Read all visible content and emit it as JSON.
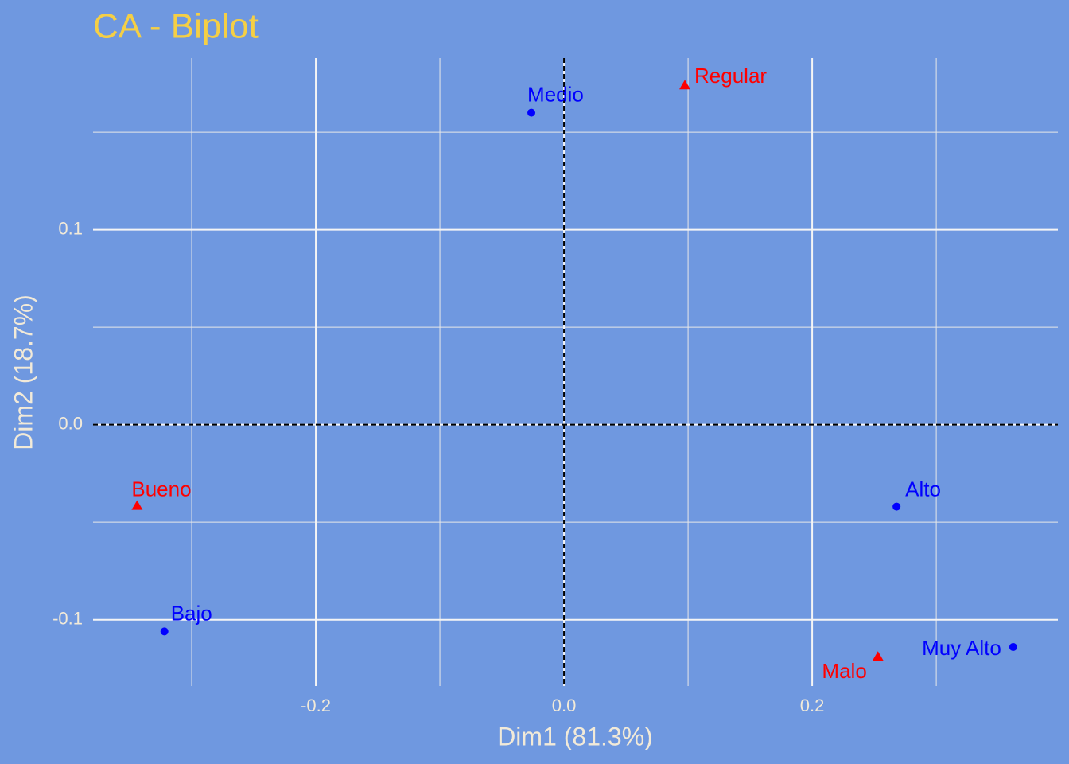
{
  "chart_data": {
    "type": "scatter",
    "title": "CA - Biplot",
    "x_label": "Dim1 (81.3%)",
    "y_label": "Dim2 (18.7%)",
    "xlim": [
      -0.3795,
      0.398
    ],
    "ylim": [
      -0.134,
      0.188
    ],
    "xticks": [
      -0.2,
      {
        "value": 0,
        "label": "0.0"
      },
      0.2
    ],
    "yticks": [
      -0.1,
      {
        "value": 0,
        "label": "0.0"
      },
      0.1
    ],
    "minor_xticks": [
      -0.3,
      -0.1,
      0.1,
      0.3
    ],
    "minor_yticks": [
      -0.05,
      0.05,
      0.15
    ],
    "grid": true,
    "zero_lines": true,
    "series": [
      {
        "color": "#0000ff",
        "marker": "circle",
        "labels": [
          "Bajo",
          "Medio",
          "Alto",
          "Muy Alto"
        ],
        "x": [
          -0.322,
          -0.0263,
          0.268,
          0.362
        ],
        "values": [
          -0.106,
          0.16,
          -0.042,
          -0.114
        ]
      },
      {
        "color": "#ff0000",
        "marker": "triangle",
        "labels": [
          "Bueno",
          "Regular",
          "Malo"
        ],
        "x": [
          -0.344,
          0.0974,
          0.253
        ],
        "values": [
          -0.0416,
          0.174,
          -0.119
        ]
      }
    ]
  }
}
